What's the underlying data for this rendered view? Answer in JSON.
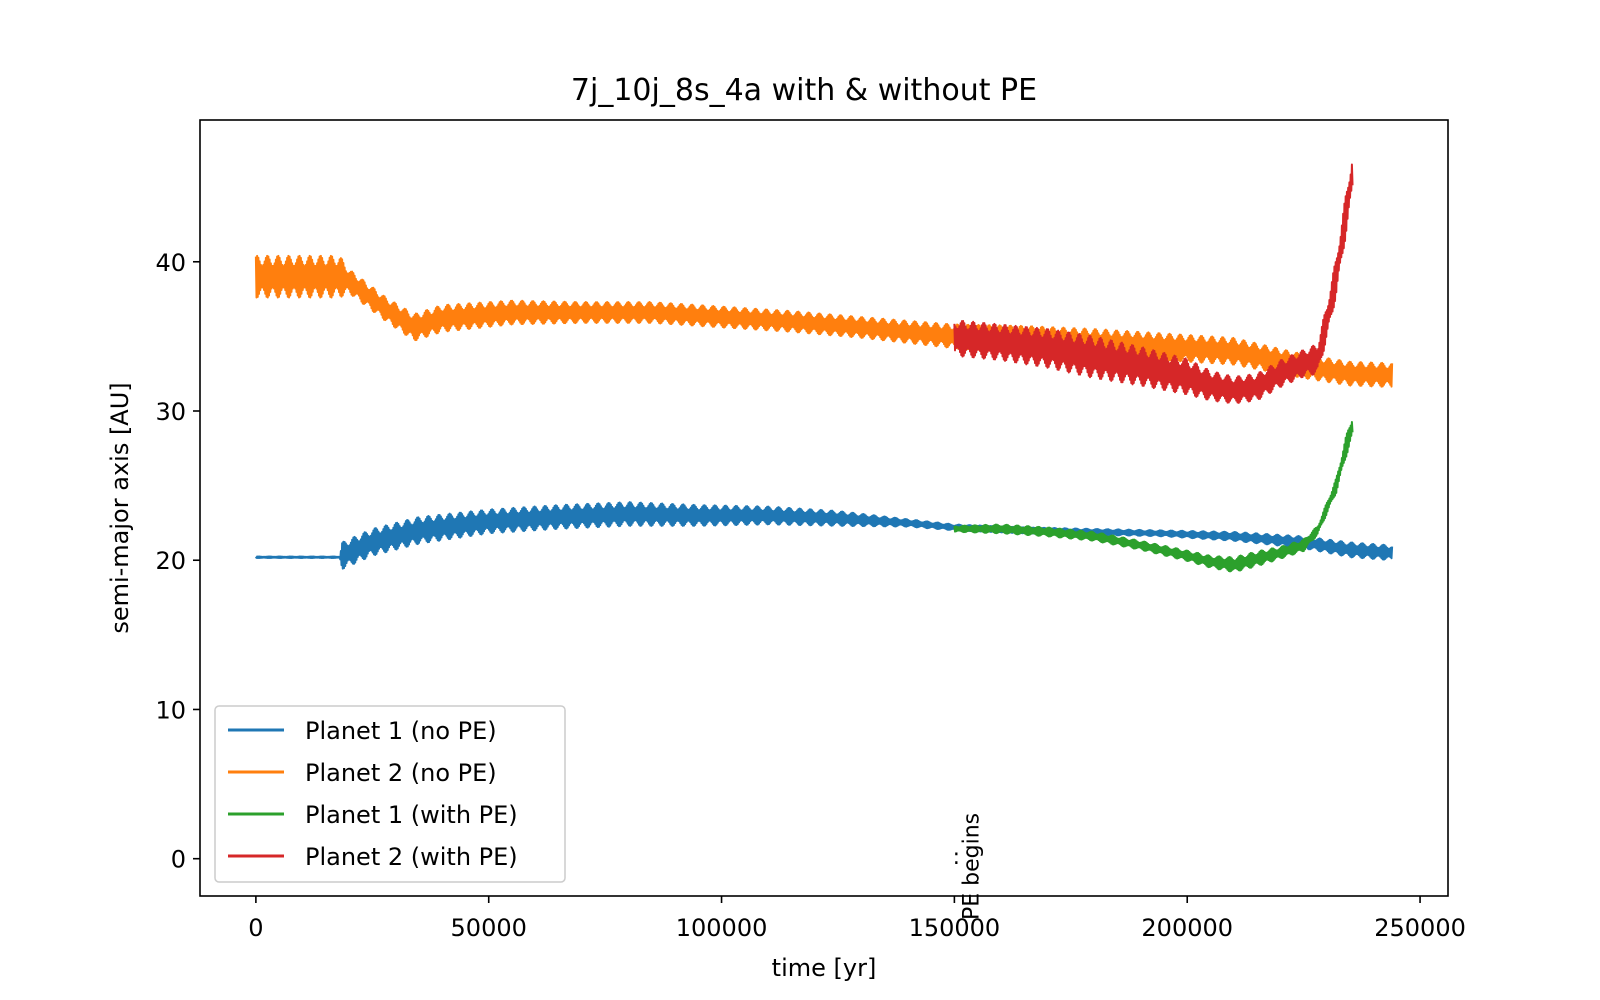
{
  "chart_data": {
    "type": "line",
    "title": "7j_10j_8s_4a with & without PE",
    "xlabel": "time [yr]",
    "ylabel": "semi-major axis [AU]",
    "xlim": [
      -12000,
      256000
    ],
    "ylim": [
      -2.5,
      49.5
    ],
    "xticks": [
      0,
      50000,
      100000,
      150000,
      200000,
      250000
    ],
    "yticks": [
      0,
      10,
      20,
      30,
      40
    ],
    "grid": false,
    "legend_position": "lower-left",
    "annotation": {
      "text": "PE begins",
      "x": 150000,
      "marker": ":"
    },
    "series": [
      {
        "name": "Planet 1 (no PE)",
        "color": "#1f77b4",
        "x": [
          0,
          18000,
          18500,
          25000,
          35000,
          50000,
          65000,
          80000,
          95000,
          110000,
          125000,
          140000,
          150000,
          165000,
          180000,
          195000,
          210000,
          225000,
          235000,
          244000
        ],
        "y": [
          20.2,
          20.2,
          20.3,
          21.2,
          22.0,
          22.6,
          22.9,
          23.1,
          23.0,
          23.0,
          22.8,
          22.5,
          22.2,
          22.0,
          21.9,
          21.8,
          21.6,
          21.2,
          20.7,
          20.5
        ],
        "amp": [
          0.05,
          0.05,
          0.9,
          0.9,
          0.9,
          0.8,
          0.8,
          0.8,
          0.7,
          0.6,
          0.5,
          0.25,
          0.2,
          0.2,
          0.2,
          0.2,
          0.3,
          0.4,
          0.5,
          0.5
        ]
      },
      {
        "name": "Planet 2 (no PE)",
        "color": "#ff7f0e",
        "x": [
          0,
          18000,
          20000,
          28000,
          34000,
          40000,
          55000,
          70000,
          85000,
          100000,
          115000,
          130000,
          150000,
          165000,
          180000,
          195000,
          210000,
          225000,
          235000,
          244000
        ],
        "y": [
          39.0,
          39.0,
          38.7,
          36.8,
          35.6,
          36.2,
          36.6,
          36.6,
          36.6,
          36.3,
          36.0,
          35.6,
          35.0,
          34.8,
          34.6,
          34.3,
          34.0,
          33.0,
          32.5,
          32.4
        ],
        "amp": [
          1.4,
          1.4,
          0.8,
          0.8,
          0.9,
          0.9,
          0.8,
          0.7,
          0.7,
          0.7,
          0.7,
          0.7,
          0.8,
          0.9,
          0.9,
          0.9,
          0.9,
          0.8,
          0.8,
          0.8
        ]
      },
      {
        "name": "Planet 1 (with PE)",
        "color": "#2ca02c",
        "x": [
          150000,
          160000,
          170000,
          180000,
          190000,
          200000,
          205000,
          210000,
          215000,
          220000,
          225000,
          228000,
          230000,
          232000,
          234000,
          235500
        ],
        "y": [
          22.1,
          22.1,
          21.9,
          21.6,
          21.0,
          20.3,
          19.9,
          19.7,
          20.1,
          20.5,
          21.0,
          22.0,
          23.5,
          25.0,
          27.5,
          29.0
        ],
        "amp": [
          0.2,
          0.3,
          0.3,
          0.3,
          0.3,
          0.35,
          0.4,
          0.5,
          0.5,
          0.4,
          0.4,
          0.3,
          0.4,
          0.5,
          0.7,
          0.8
        ]
      },
      {
        "name": "Planet 2 (with PE)",
        "color": "#d62728",
        "x": [
          150000,
          160000,
          170000,
          180000,
          190000,
          200000,
          205000,
          210000,
          215000,
          220000,
          225000,
          228000,
          230000,
          232000,
          234000,
          235500
        ],
        "y": [
          34.9,
          34.6,
          34.2,
          33.6,
          33.0,
          32.3,
          31.7,
          31.4,
          31.6,
          32.5,
          33.2,
          33.5,
          36.0,
          39.0,
          43.0,
          46.0
        ],
        "amp": [
          1.2,
          1.2,
          1.3,
          1.4,
          1.3,
          1.2,
          1.0,
          0.9,
          0.9,
          0.9,
          0.9,
          1.0,
          1.2,
          1.3,
          1.4,
          1.2
        ]
      }
    ]
  }
}
